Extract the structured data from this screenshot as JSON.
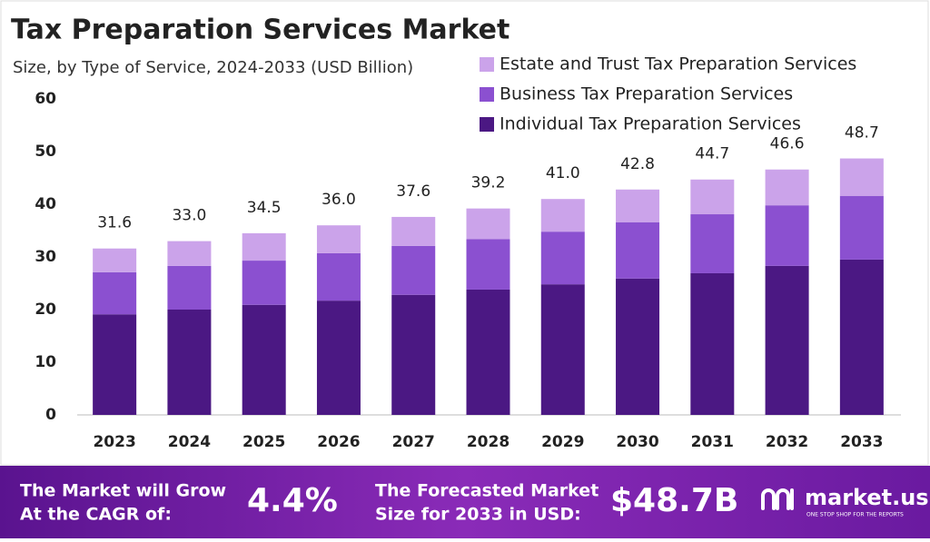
{
  "chart_data": {
    "type": "stacked_bar",
    "title": "Tax Preparation Services Market",
    "subtitle": "Size, by Type of Service, 2024-2033 (USD Billion)",
    "categories": [
      "2023",
      "2024",
      "2025",
      "2026",
      "2027",
      "2028",
      "2029",
      "2030",
      "2031",
      "2032",
      "2033"
    ],
    "series": [
      {
        "name": "Individual Tax Preparation Services",
        "color": "#4b1883",
        "values": [
          19.1,
          20.0,
          20.9,
          21.7,
          22.8,
          23.8,
          24.8,
          25.9,
          26.9,
          28.3,
          29.5
        ]
      },
      {
        "name": "Business Tax Preparation Services",
        "color": "#8b50d0",
        "values": [
          8.0,
          8.3,
          8.4,
          9.0,
          9.3,
          9.6,
          10.0,
          10.7,
          11.2,
          11.5,
          12.1
        ]
      },
      {
        "name": "Estate and Trust Tax Preparation Services",
        "color": "#cba3ea",
        "values": [
          4.5,
          4.7,
          5.2,
          5.3,
          5.5,
          5.8,
          6.2,
          6.2,
          6.6,
          6.8,
          7.1
        ]
      }
    ],
    "totals": [
      31.6,
      33.0,
      34.5,
      36.0,
      37.6,
      39.2,
      41.0,
      42.8,
      44.7,
      46.6,
      48.7
    ],
    "total_labels": [
      "31.6",
      "33.0",
      "34.5",
      "36.0",
      "37.6",
      "39.2",
      "41.0",
      "42.8",
      "44.7",
      "46.6",
      "48.7"
    ],
    "ylim": [
      0,
      60
    ],
    "yticks": [
      0,
      10,
      20,
      30,
      40,
      50,
      60
    ],
    "grid": false,
    "legend": "top-right"
  },
  "footer": {
    "cagr_text": [
      "The Market will Grow",
      "At the CAGR of:"
    ],
    "cagr": "4.4%",
    "forecast_text": [
      "The Forecasted Market",
      "Size for 2033 in USD:"
    ],
    "forecast": "$48.7B",
    "brand": "market.us",
    "tagline": "ONE STOP SHOP FOR THE REPORTS"
  }
}
